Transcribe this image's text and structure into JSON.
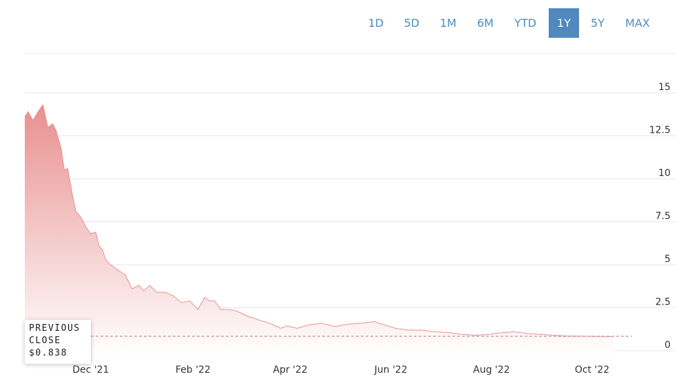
{
  "range_selector": {
    "buttons": [
      "1D",
      "5D",
      "1M",
      "6M",
      "YTD",
      "1Y",
      "5Y",
      "MAX"
    ],
    "active": "1Y"
  },
  "previous_close": {
    "line1": "PREVIOUS",
    "line2": "CLOSE",
    "value_label": "$0.838",
    "value": 0.838
  },
  "colors": {
    "area_top": "#e8908f",
    "area_bottom": "#ffffff",
    "grid": "#e4e4e4",
    "tick_text": "#333333",
    "range_text": "#4a8bc0",
    "range_active_bg": "#4f89be",
    "prev_close_line": "#b07a7a"
  },
  "chart_data": {
    "type": "area",
    "title": "",
    "xlabel": "",
    "ylabel": "",
    "ylim": [
      0,
      15
    ],
    "y_ticks": [
      "0",
      "2.5",
      "5",
      "7.5",
      "10",
      "12.5",
      "15"
    ],
    "x_tick_labels": [
      "Dec '21",
      "Feb '22",
      "Apr '22",
      "Jun '22",
      "Aug '22",
      "Oct '22"
    ],
    "x_tick_dates": [
      "2021-12-01",
      "2022-02-01",
      "2022-04-01",
      "2022-06-01",
      "2022-08-01",
      "2022-10-01"
    ],
    "x_range": [
      "2021-10-22",
      "2022-11-08"
    ],
    "grid": true,
    "series": [
      {
        "x": [
          "2021-10-22",
          "2021-10-24",
          "2021-10-27",
          "2021-10-30",
          "2021-11-02",
          "2021-11-05",
          "2021-11-08",
          "2021-11-10",
          "2021-11-13",
          "2021-11-15",
          "2021-11-17",
          "2021-11-20",
          "2021-11-22",
          "2021-11-24",
          "2021-11-26",
          "2021-11-28",
          "2021-12-01",
          "2021-12-04",
          "2021-12-06",
          "2021-12-08",
          "2021-12-10",
          "2021-12-13",
          "2021-12-16",
          "2021-12-19",
          "2021-12-22",
          "2021-12-26",
          "2021-12-30",
          "2022-01-02",
          "2022-01-06",
          "2022-01-10",
          "2022-01-15",
          "2022-01-20",
          "2022-01-25",
          "2022-01-30",
          "2022-02-04",
          "2022-02-08",
          "2022-02-11",
          "2022-02-14",
          "2022-02-18",
          "2022-02-22",
          "2022-02-26",
          "2022-03-02",
          "2022-03-06",
          "2022-03-10",
          "2022-03-14",
          "2022-03-18",
          "2022-03-22",
          "2022-03-26",
          "2022-03-30",
          "2022-04-01",
          "2022-04-05",
          "2022-04-12",
          "2022-04-20",
          "2022-04-28",
          "2022-05-06",
          "2022-05-14",
          "2022-05-22",
          "2022-05-28",
          "2022-06-04",
          "2022-06-12",
          "2022-06-20",
          "2022-06-28",
          "2022-07-06",
          "2022-07-14",
          "2022-07-22",
          "2022-07-30",
          "2022-08-07",
          "2022-08-15",
          "2022-08-23",
          "2022-08-31",
          "2022-09-08",
          "2022-09-16",
          "2022-09-24",
          "2022-10-02",
          "2022-10-08",
          "2022-10-14"
        ],
        "values": [
          13.6,
          13.9,
          13.4,
          13.9,
          14.3,
          13.0,
          13.2,
          12.8,
          11.8,
          10.5,
          10.6,
          9.0,
          8.1,
          7.9,
          7.6,
          7.2,
          6.8,
          6.9,
          6.1,
          5.9,
          5.3,
          5.0,
          4.8,
          4.6,
          4.4,
          3.6,
          3.8,
          3.5,
          3.8,
          3.4,
          3.4,
          3.2,
          2.8,
          2.9,
          2.4,
          3.1,
          2.9,
          2.9,
          2.4,
          2.4,
          2.35,
          2.2,
          2.0,
          1.9,
          1.75,
          1.65,
          1.5,
          1.3,
          1.45,
          1.4,
          1.3,
          1.5,
          1.6,
          1.4,
          1.55,
          1.6,
          1.7,
          1.5,
          1.3,
          1.2,
          1.2,
          1.1,
          1.05,
          0.95,
          0.9,
          0.95,
          1.05,
          1.1,
          1.0,
          0.95,
          0.9,
          0.85,
          0.85,
          0.83,
          0.83,
          0.83
        ]
      }
    ]
  }
}
